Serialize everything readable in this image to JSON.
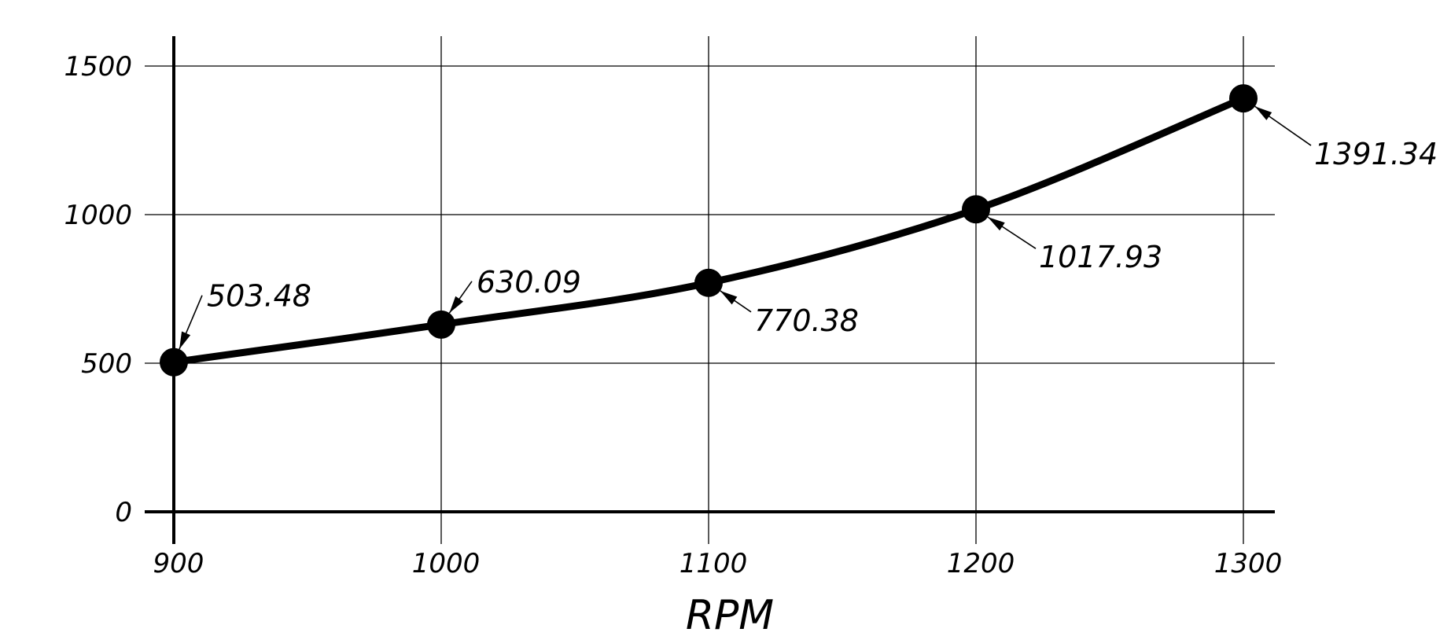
{
  "chart_data": {
    "type": "line",
    "x": [
      900,
      1000,
      1100,
      1200,
      1300
    ],
    "series": [
      {
        "values": [
          503.48,
          630.09,
          770.38,
          1017.93,
          1391.34
        ]
      }
    ],
    "data_labels": [
      "503.48",
      "630.09",
      "770.38",
      "1017.93",
      "1391.34"
    ],
    "x_ticks": [
      "900",
      "1000",
      "1100",
      "1200",
      "1300"
    ],
    "y_ticks": [
      "0",
      "500",
      "1000",
      "1500"
    ],
    "y_tick_values": [
      0,
      500,
      1000,
      1500
    ],
    "xlabel": "RPM",
    "ylabel": "",
    "title": "",
    "xlim": [
      900,
      1300
    ],
    "ylim": [
      0,
      1500
    ],
    "grid": true,
    "line_color": "#000000"
  }
}
